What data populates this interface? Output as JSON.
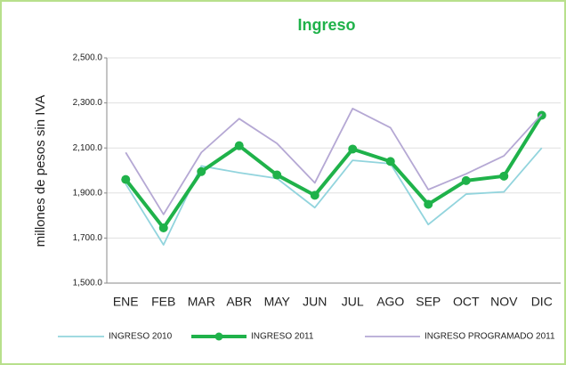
{
  "chart_data": {
    "type": "line",
    "title": "Ingreso",
    "ylabel": "millones de pesos sin IVA",
    "categories": [
      "ENE",
      "FEB",
      "MAR",
      "ABR",
      "MAY",
      "JUN",
      "JUL",
      "AGO",
      "SEP",
      "OCT",
      "NOV",
      "DIC"
    ],
    "series": [
      {
        "name": "INGRESO 2010",
        "color": "#92d4dd",
        "values": [
          1940,
          1670,
          2020,
          1990,
          1965,
          1835,
          2045,
          2030,
          1760,
          1895,
          1905,
          2100
        ]
      },
      {
        "name": "INGRESO 2011",
        "color": "#1fb24a",
        "values": [
          1960,
          1745,
          1995,
          2110,
          1980,
          1890,
          2095,
          2040,
          1850,
          1955,
          1975,
          2245
        ]
      },
      {
        "name": "INGRESO PROGRAMADO 2011",
        "color": "#b5a8d4",
        "values": [
          2080,
          1805,
          2080,
          2230,
          2120,
          1945,
          2275,
          2190,
          1915,
          1985,
          2065,
          2250
        ]
      }
    ],
    "ylim": [
      1500,
      2500
    ],
    "yticks": [
      {
        "value": 1500,
        "label": "1,500.0"
      },
      {
        "value": 1700,
        "label": "1,700.0"
      },
      {
        "value": 1900,
        "label": "1,900.0"
      },
      {
        "value": 2100,
        "label": "2,100.0"
      },
      {
        "value": 2300,
        "label": "2,300.0"
      },
      {
        "value": 2500,
        "label": "2,500.0"
      }
    ],
    "grid": true,
    "legend": "bottom"
  }
}
